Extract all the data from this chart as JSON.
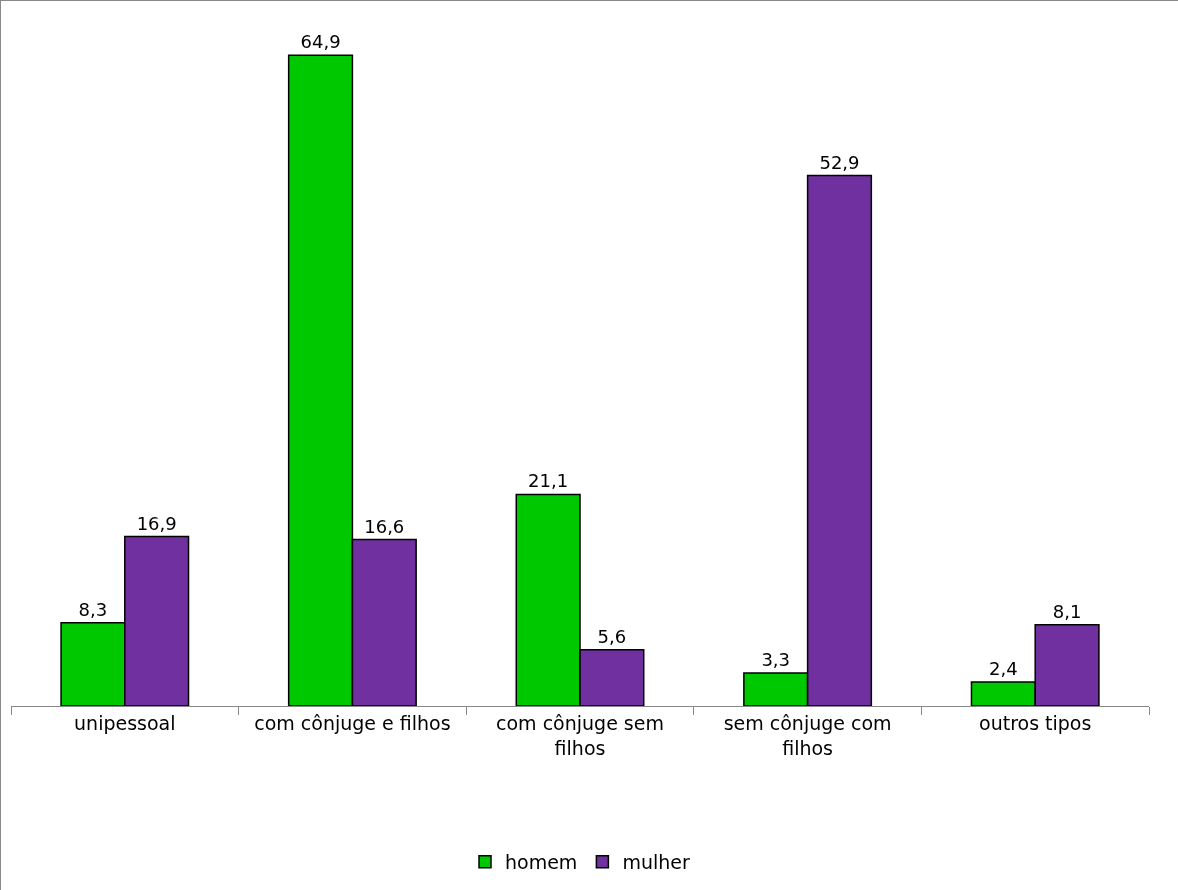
{
  "chart_data": {
    "type": "bar",
    "categories": [
      "unipessoal",
      "com cônjuge e filhos",
      "com cônjuge sem filhos",
      "sem cônjuge com filhos",
      "outros tipos"
    ],
    "series": [
      {
        "name": "homem",
        "color": "#00c800",
        "values": [
          8.3,
          64.9,
          21.1,
          3.3,
          2.4
        ],
        "value_labels": [
          "8,3",
          "64,9",
          "21,1",
          "3,3",
          "2,4"
        ]
      },
      {
        "name": "mulher",
        "color": "#7030a0",
        "values": [
          16.9,
          16.6,
          5.6,
          52.9,
          8.1
        ],
        "value_labels": [
          "16,9",
          "16,6",
          "5,6",
          "52,9",
          "8,1"
        ]
      }
    ],
    "legend": "bottom",
    "grid": false
  }
}
